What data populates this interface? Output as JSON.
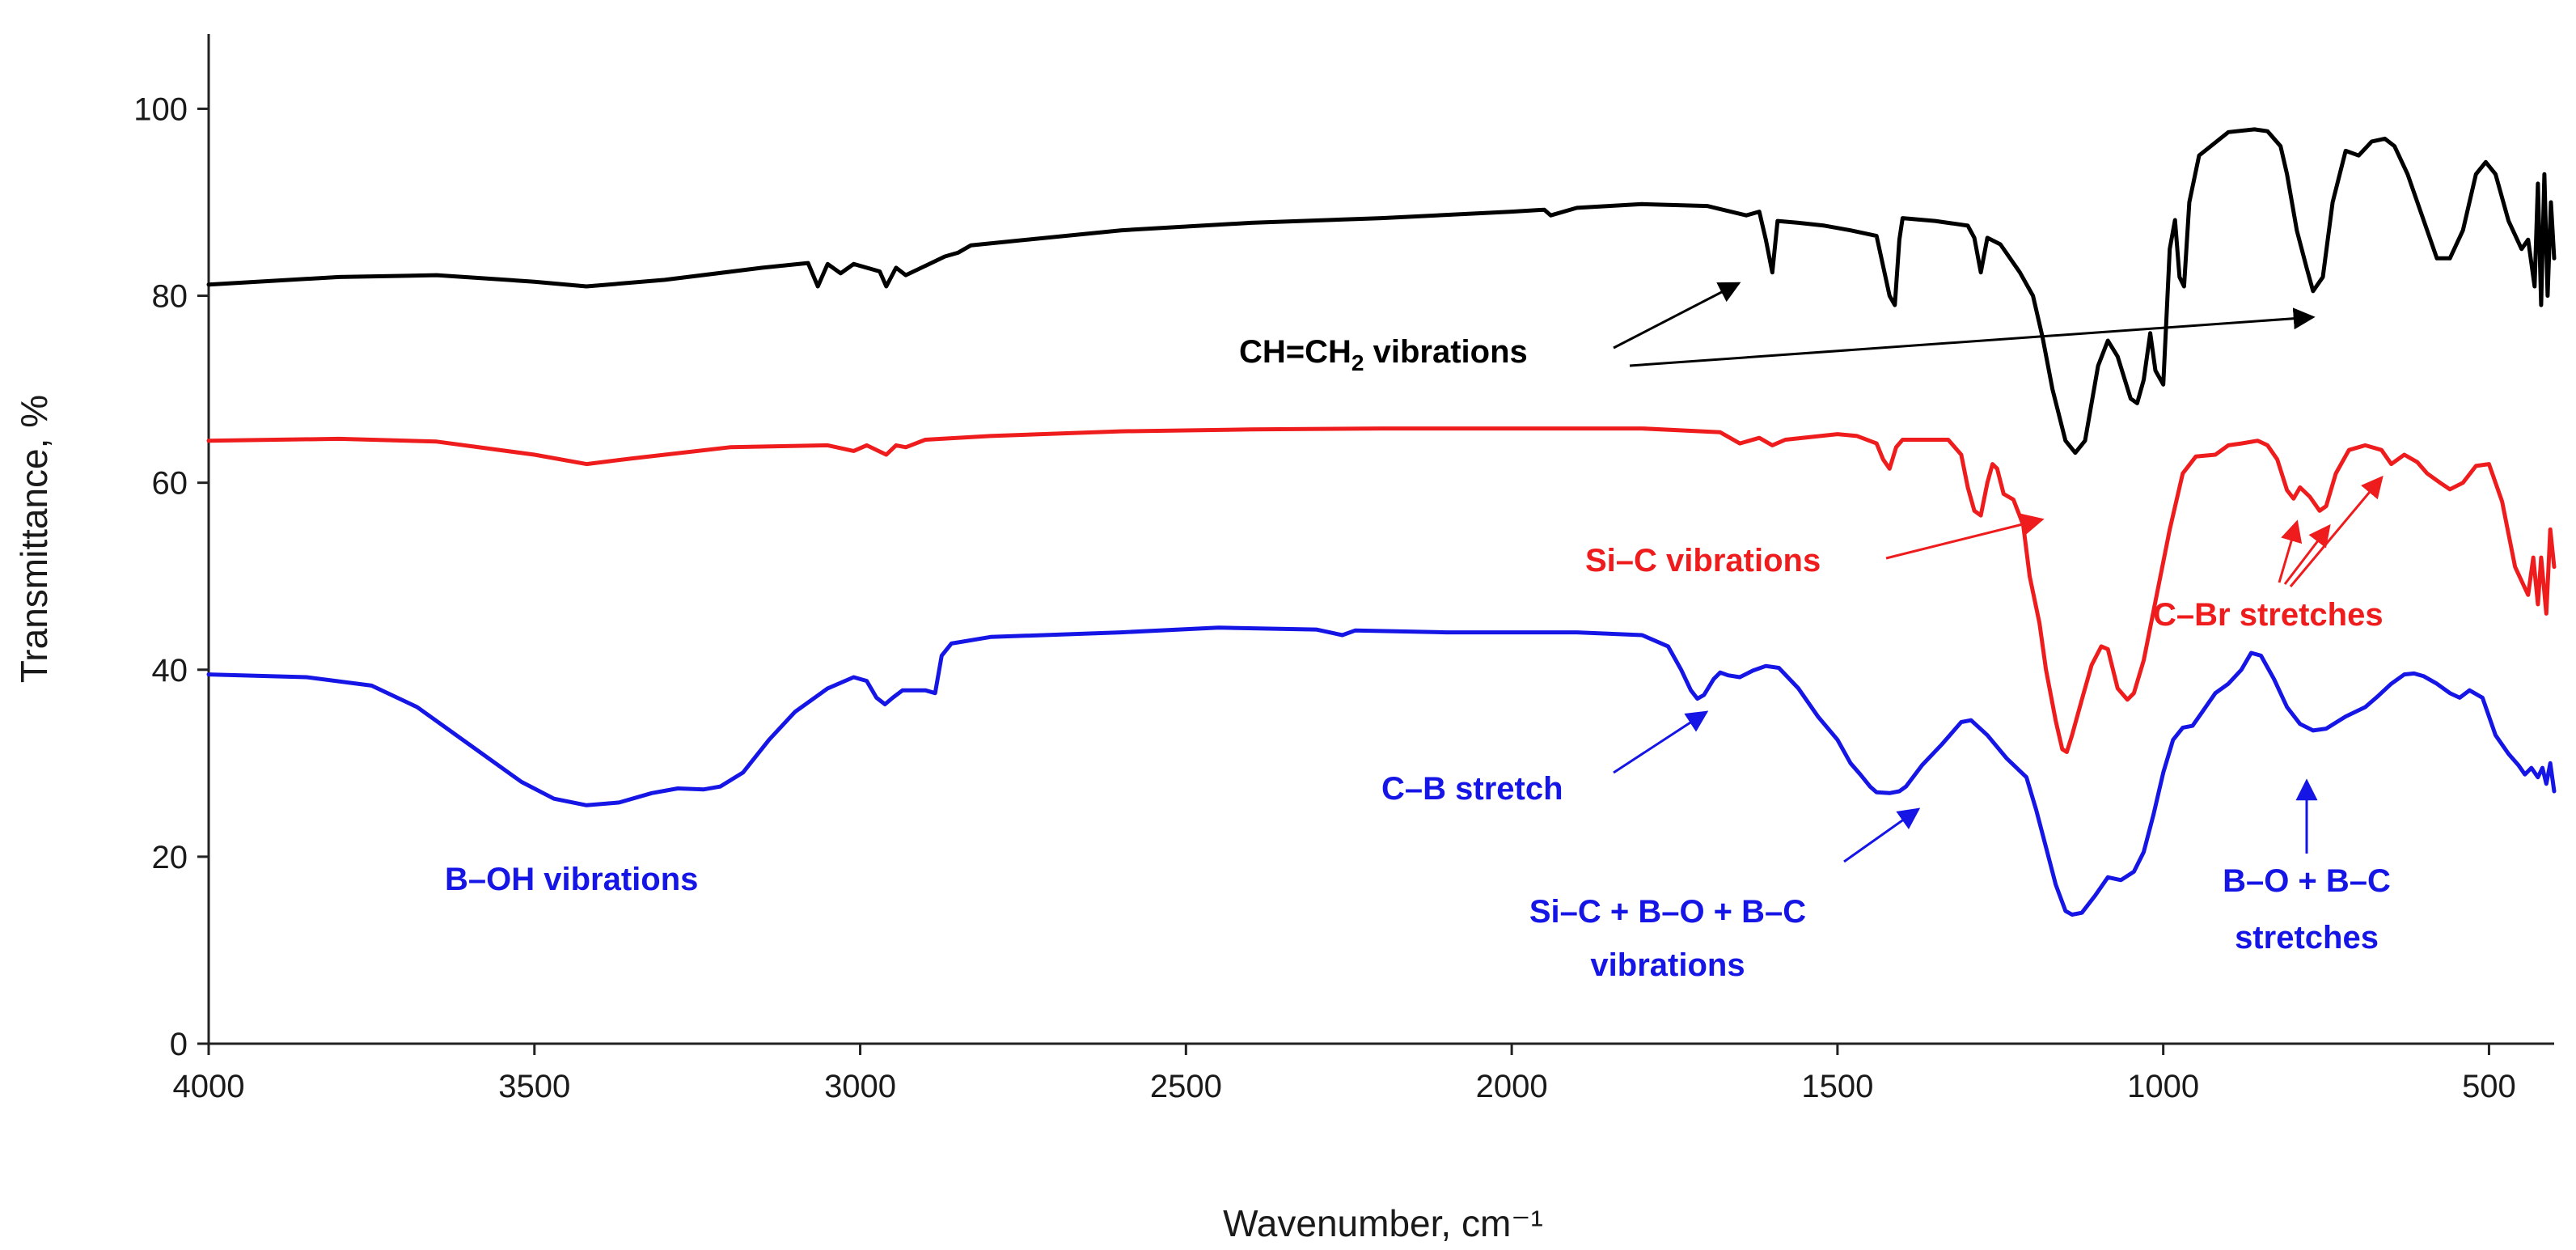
{
  "chart_data": {
    "type": "line",
    "title": "",
    "xlabel": "Wavenumber, cm⁻¹",
    "ylabel": "Transmittance, %",
    "xlim": [
      4000,
      400
    ],
    "ylim": [
      0,
      108
    ],
    "x_inverted": true,
    "xticks": [
      4000,
      3500,
      3000,
      2500,
      2000,
      1500,
      1000,
      500
    ],
    "yticks": [
      0,
      20,
      40,
      60,
      80,
      100
    ],
    "grid": false,
    "legend": "none",
    "series": [
      {
        "name": "black spectrum",
        "color": "#000000",
        "points": [
          [
            4000,
            81.2
          ],
          [
            3800,
            82
          ],
          [
            3650,
            82.2
          ],
          [
            3500,
            81.5
          ],
          [
            3420,
            81
          ],
          [
            3300,
            81.7
          ],
          [
            3150,
            83
          ],
          [
            3080,
            83.5
          ],
          [
            3065,
            81
          ],
          [
            3050,
            83.4
          ],
          [
            3030,
            82.4
          ],
          [
            3010,
            83.4
          ],
          [
            2970,
            82.6
          ],
          [
            2960,
            81
          ],
          [
            2945,
            83
          ],
          [
            2930,
            82.2
          ],
          [
            2900,
            83.2
          ],
          [
            2870,
            84.2
          ],
          [
            2850,
            84.6
          ],
          [
            2830,
            85.4
          ],
          [
            2600,
            87
          ],
          [
            2400,
            87.8
          ],
          [
            2200,
            88.3
          ],
          [
            2000,
            89
          ],
          [
            1950,
            89.2
          ],
          [
            1940,
            88.6
          ],
          [
            1900,
            89.4
          ],
          [
            1800,
            89.8
          ],
          [
            1700,
            89.6
          ],
          [
            1640,
            88.6
          ],
          [
            1620,
            89
          ],
          [
            1610,
            86
          ],
          [
            1600,
            82.5
          ],
          [
            1592,
            88
          ],
          [
            1560,
            87.8
          ],
          [
            1520,
            87.5
          ],
          [
            1480,
            87
          ],
          [
            1440,
            86.4
          ],
          [
            1420,
            80
          ],
          [
            1412,
            79
          ],
          [
            1405,
            86
          ],
          [
            1400,
            88.3
          ],
          [
            1350,
            88
          ],
          [
            1300,
            87.5
          ],
          [
            1290,
            86.2
          ],
          [
            1280,
            82.5
          ],
          [
            1270,
            86.2
          ],
          [
            1250,
            85.5
          ],
          [
            1220,
            82.5
          ],
          [
            1200,
            80
          ],
          [
            1185,
            75.5
          ],
          [
            1170,
            70
          ],
          [
            1150,
            64.5
          ],
          [
            1135,
            63.2
          ],
          [
            1120,
            64.5
          ],
          [
            1100,
            72.5
          ],
          [
            1085,
            75.2
          ],
          [
            1070,
            73.5
          ],
          [
            1050,
            69
          ],
          [
            1040,
            68.5
          ],
          [
            1030,
            71
          ],
          [
            1020,
            76
          ],
          [
            1012,
            72
          ],
          [
            1000,
            70.5
          ],
          [
            990,
            85
          ],
          [
            982,
            88.1
          ],
          [
            975,
            82
          ],
          [
            968,
            81
          ],
          [
            960,
            90
          ],
          [
            945,
            95
          ],
          [
            900,
            97.5
          ],
          [
            860,
            97.8
          ],
          [
            840,
            97.6
          ],
          [
            820,
            96
          ],
          [
            810,
            93
          ],
          [
            795,
            87
          ],
          [
            780,
            83
          ],
          [
            770,
            80.5
          ],
          [
            755,
            82
          ],
          [
            740,
            90
          ],
          [
            720,
            95.5
          ],
          [
            700,
            95
          ],
          [
            680,
            96.5
          ],
          [
            660,
            96.8
          ],
          [
            645,
            96
          ],
          [
            625,
            93
          ],
          [
            600,
            88
          ],
          [
            580,
            84
          ],
          [
            560,
            84
          ],
          [
            540,
            87
          ],
          [
            520,
            93
          ],
          [
            505,
            94.3
          ],
          [
            490,
            93
          ],
          [
            470,
            88
          ],
          [
            450,
            85
          ],
          [
            440,
            86
          ],
          [
            430,
            81
          ],
          [
            425,
            92
          ],
          [
            420,
            79
          ],
          [
            415,
            93
          ],
          [
            410,
            80
          ],
          [
            405,
            90
          ],
          [
            400,
            84
          ]
        ]
      },
      {
        "name": "red spectrum",
        "color": "#ee1c1c",
        "points": [
          [
            4000,
            64.5
          ],
          [
            3800,
            64.7
          ],
          [
            3650,
            64.4
          ],
          [
            3500,
            63
          ],
          [
            3420,
            62
          ],
          [
            3350,
            62.6
          ],
          [
            3200,
            63.8
          ],
          [
            3050,
            64
          ],
          [
            3010,
            63.4
          ],
          [
            2990,
            64
          ],
          [
            2960,
            63
          ],
          [
            2945,
            64
          ],
          [
            2930,
            63.8
          ],
          [
            2900,
            64.6
          ],
          [
            2800,
            65
          ],
          [
            2600,
            65.5
          ],
          [
            2400,
            65.7
          ],
          [
            2200,
            65.8
          ],
          [
            2000,
            65.8
          ],
          [
            1800,
            65.8
          ],
          [
            1680,
            65.4
          ],
          [
            1650,
            64.2
          ],
          [
            1620,
            64.8
          ],
          [
            1600,
            64
          ],
          [
            1580,
            64.6
          ],
          [
            1500,
            65.2
          ],
          [
            1470,
            65
          ],
          [
            1440,
            64.2
          ],
          [
            1430,
            62.5
          ],
          [
            1420,
            61.5
          ],
          [
            1410,
            63.8
          ],
          [
            1400,
            64.6
          ],
          [
            1330,
            64.6
          ],
          [
            1310,
            63
          ],
          [
            1300,
            59.5
          ],
          [
            1290,
            57
          ],
          [
            1280,
            56.5
          ],
          [
            1270,
            60
          ],
          [
            1262,
            62
          ],
          [
            1255,
            61.5
          ],
          [
            1245,
            58.8
          ],
          [
            1230,
            58.2
          ],
          [
            1215,
            55.5
          ],
          [
            1205,
            50
          ],
          [
            1190,
            45
          ],
          [
            1180,
            40
          ],
          [
            1165,
            34.5
          ],
          [
            1155,
            31.5
          ],
          [
            1148,
            31.2
          ],
          [
            1140,
            33
          ],
          [
            1125,
            36.8
          ],
          [
            1110,
            40.5
          ],
          [
            1095,
            42.5
          ],
          [
            1085,
            42.2
          ],
          [
            1070,
            38
          ],
          [
            1055,
            36.8
          ],
          [
            1045,
            37.5
          ],
          [
            1030,
            41
          ],
          [
            1010,
            48
          ],
          [
            990,
            55
          ],
          [
            970,
            61
          ],
          [
            950,
            62.8
          ],
          [
            920,
            63
          ],
          [
            900,
            64
          ],
          [
            880,
            64.2
          ],
          [
            855,
            64.5
          ],
          [
            840,
            64
          ],
          [
            825,
            62.5
          ],
          [
            810,
            59.2
          ],
          [
            800,
            58.3
          ],
          [
            790,
            59.5
          ],
          [
            775,
            58.5
          ],
          [
            760,
            57
          ],
          [
            750,
            57.5
          ],
          [
            735,
            61
          ],
          [
            715,
            63.5
          ],
          [
            690,
            64
          ],
          [
            665,
            63.5
          ],
          [
            650,
            62
          ],
          [
            630,
            63
          ],
          [
            610,
            62.2
          ],
          [
            595,
            61
          ],
          [
            575,
            60
          ],
          [
            560,
            59.3
          ],
          [
            540,
            60
          ],
          [
            520,
            61.8
          ],
          [
            500,
            62
          ],
          [
            480,
            58
          ],
          [
            460,
            51
          ],
          [
            450,
            49.5
          ],
          [
            440,
            48
          ],
          [
            432,
            52
          ],
          [
            425,
            47
          ],
          [
            420,
            52
          ],
          [
            412,
            46
          ],
          [
            406,
            55
          ],
          [
            400,
            51
          ]
        ]
      },
      {
        "name": "blue spectrum",
        "color": "#1515e6",
        "points": [
          [
            4000,
            39.5
          ],
          [
            3850,
            39.2
          ],
          [
            3750,
            38.3
          ],
          [
            3680,
            36
          ],
          [
            3600,
            32
          ],
          [
            3520,
            28
          ],
          [
            3470,
            26.2
          ],
          [
            3420,
            25.5
          ],
          [
            3370,
            25.8
          ],
          [
            3320,
            26.8
          ],
          [
            3280,
            27.3
          ],
          [
            3240,
            27.2
          ],
          [
            3215,
            27.5
          ],
          [
            3180,
            29
          ],
          [
            3140,
            32.5
          ],
          [
            3100,
            35.5
          ],
          [
            3050,
            38
          ],
          [
            3010,
            39.2
          ],
          [
            2990,
            38.8
          ],
          [
            2975,
            37
          ],
          [
            2962,
            36.3
          ],
          [
            2950,
            37
          ],
          [
            2935,
            37.8
          ],
          [
            2900,
            37.8
          ],
          [
            2885,
            37.5
          ],
          [
            2875,
            41.5
          ],
          [
            2860,
            42.8
          ],
          [
            2800,
            43.5
          ],
          [
            2600,
            44
          ],
          [
            2450,
            44.5
          ],
          [
            2300,
            44.3
          ],
          [
            2260,
            43.7
          ],
          [
            2240,
            44.2
          ],
          [
            2100,
            44
          ],
          [
            1900,
            44
          ],
          [
            1800,
            43.7
          ],
          [
            1760,
            42.5
          ],
          [
            1740,
            40
          ],
          [
            1725,
            37.8
          ],
          [
            1715,
            36.9
          ],
          [
            1705,
            37.3
          ],
          [
            1690,
            39
          ],
          [
            1680,
            39.7
          ],
          [
            1668,
            39.4
          ],
          [
            1650,
            39.2
          ],
          [
            1630,
            39.9
          ],
          [
            1610,
            40.4
          ],
          [
            1590,
            40.2
          ],
          [
            1560,
            38
          ],
          [
            1530,
            35
          ],
          [
            1500,
            32.5
          ],
          [
            1480,
            30
          ],
          [
            1465,
            28.8
          ],
          [
            1450,
            27.5
          ],
          [
            1440,
            26.9
          ],
          [
            1420,
            26.8
          ],
          [
            1405,
            27
          ],
          [
            1395,
            27.5
          ],
          [
            1370,
            29.8
          ],
          [
            1340,
            32
          ],
          [
            1310,
            34.4
          ],
          [
            1295,
            34.6
          ],
          [
            1270,
            33
          ],
          [
            1240,
            30.5
          ],
          [
            1210,
            28.5
          ],
          [
            1195,
            25
          ],
          [
            1180,
            21
          ],
          [
            1165,
            17
          ],
          [
            1150,
            14.2
          ],
          [
            1140,
            13.8
          ],
          [
            1125,
            14
          ],
          [
            1105,
            15.8
          ],
          [
            1085,
            17.8
          ],
          [
            1065,
            17.5
          ],
          [
            1045,
            18.4
          ],
          [
            1030,
            20.5
          ],
          [
            1015,
            24.5
          ],
          [
            1000,
            29
          ],
          [
            985,
            32.5
          ],
          [
            970,
            33.8
          ],
          [
            955,
            34
          ],
          [
            940,
            35.5
          ],
          [
            920,
            37.5
          ],
          [
            900,
            38.5
          ],
          [
            880,
            40
          ],
          [
            865,
            41.8
          ],
          [
            850,
            41.5
          ],
          [
            830,
            39
          ],
          [
            810,
            36
          ],
          [
            790,
            34.2
          ],
          [
            770,
            33.5
          ],
          [
            750,
            33.7
          ],
          [
            720,
            35
          ],
          [
            690,
            36
          ],
          [
            670,
            37.2
          ],
          [
            650,
            38.5
          ],
          [
            630,
            39.5
          ],
          [
            615,
            39.6
          ],
          [
            600,
            39.3
          ],
          [
            580,
            38.5
          ],
          [
            560,
            37.5
          ],
          [
            545,
            37
          ],
          [
            530,
            37.8
          ],
          [
            510,
            37
          ],
          [
            490,
            33
          ],
          [
            470,
            31
          ],
          [
            455,
            29.8
          ],
          [
            445,
            28.8
          ],
          [
            435,
            29.5
          ],
          [
            425,
            28.5
          ],
          [
            418,
            29.5
          ],
          [
            412,
            27.8
          ],
          [
            406,
            30
          ],
          [
            400,
            27
          ]
        ]
      }
    ],
    "annotations": [
      {
        "text": "CH=CH",
        "sub": "2",
        "suffix": " vibrations",
        "color": "#000000"
      },
      {
        "text": "Si–C vibrations",
        "color": "#ee1c1c"
      },
      {
        "text": "C–Br stretches",
        "color": "#ee1c1c"
      },
      {
        "text": "C–B stretch",
        "color": "#1515e6"
      },
      {
        "text": "B–OH vibrations",
        "color": "#1515e6"
      },
      {
        "text": "Si–C + B–O + B–C",
        "line2": "vibrations",
        "color": "#1515e6"
      },
      {
        "text": "B–O + B–C",
        "line2": "stretches",
        "color": "#1515e6"
      }
    ]
  }
}
